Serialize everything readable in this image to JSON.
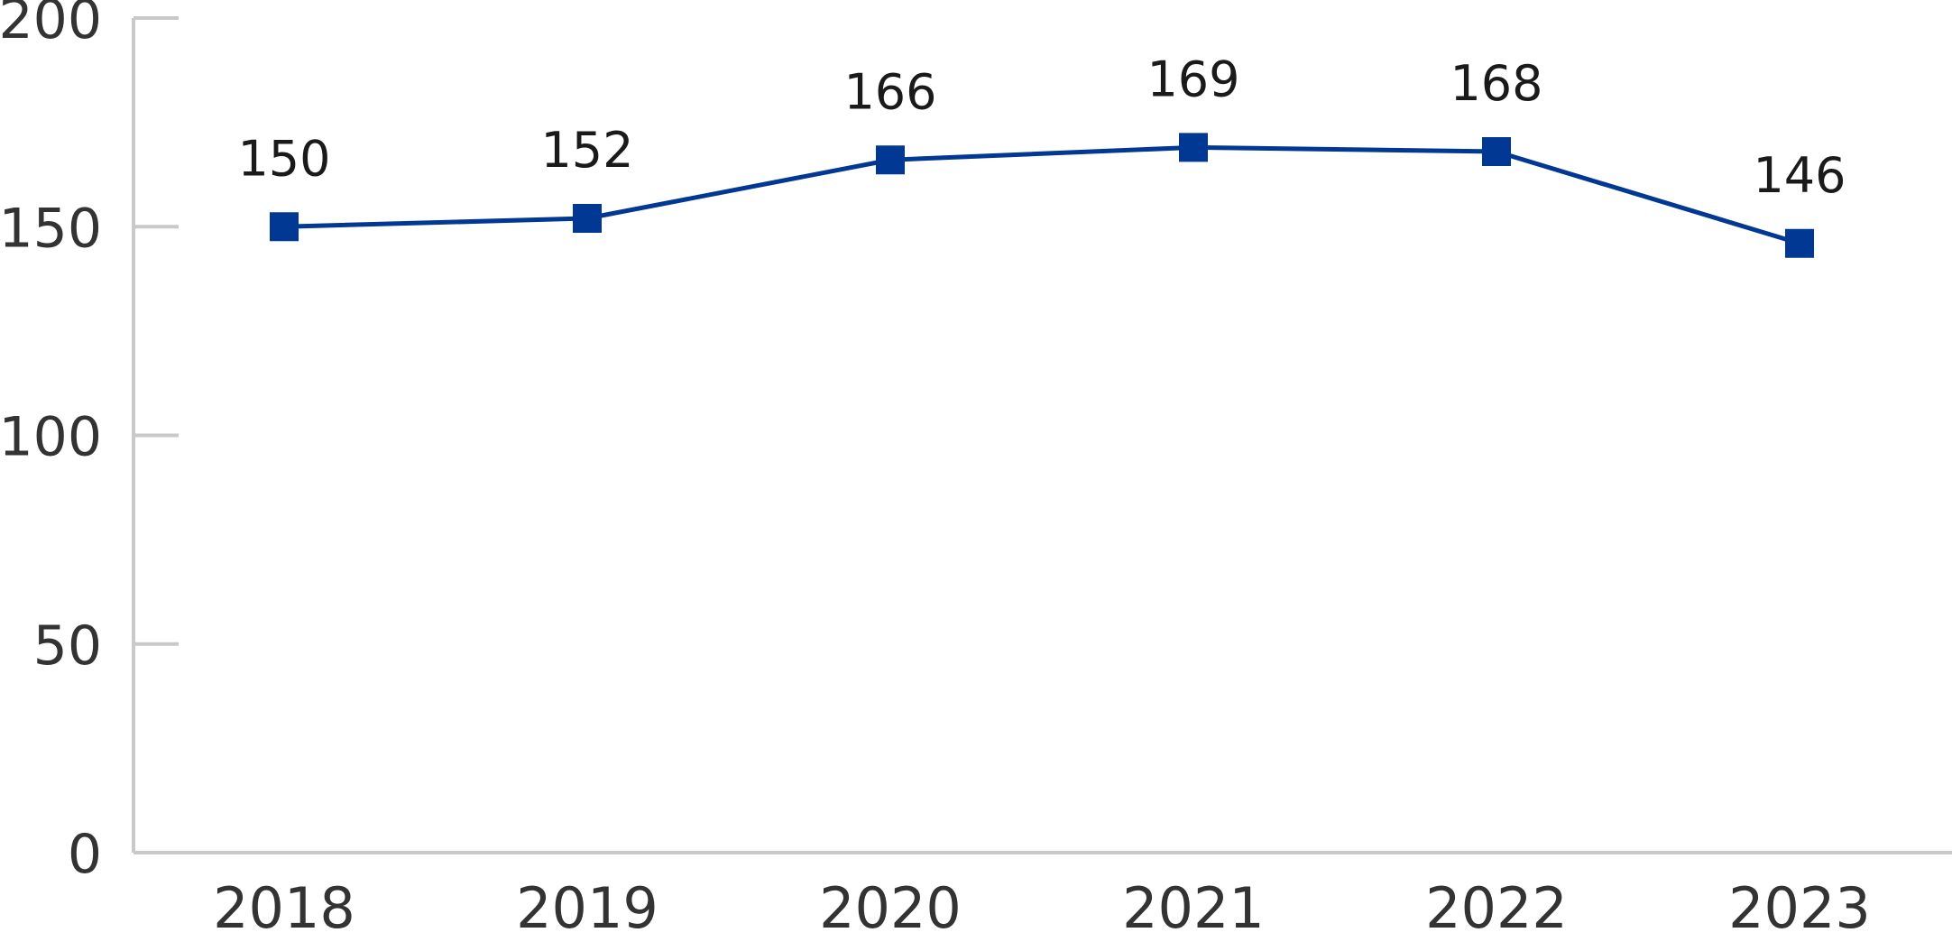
{
  "chart_data": {
    "type": "line",
    "title": "",
    "xlabel": "",
    "ylabel": "",
    "categories": [
      "2018",
      "2019",
      "2020",
      "2021",
      "2022",
      "2023"
    ],
    "series": [
      {
        "values": [
          150,
          152,
          166,
          169,
          168,
          146
        ],
        "color": "#003893",
        "marker": "square"
      }
    ],
    "data_labels": [
      "150",
      "152",
      "166",
      "169",
      "168",
      "146"
    ],
    "ylim": [
      0,
      200
    ],
    "yticks": [
      0,
      50,
      100,
      150,
      200
    ],
    "ytick_labels": [
      "0",
      "50",
      "100",
      "150",
      "200"
    ],
    "grid": false,
    "legend": "none",
    "axis_color": "#c9c9c9",
    "text_color": "#333333"
  }
}
